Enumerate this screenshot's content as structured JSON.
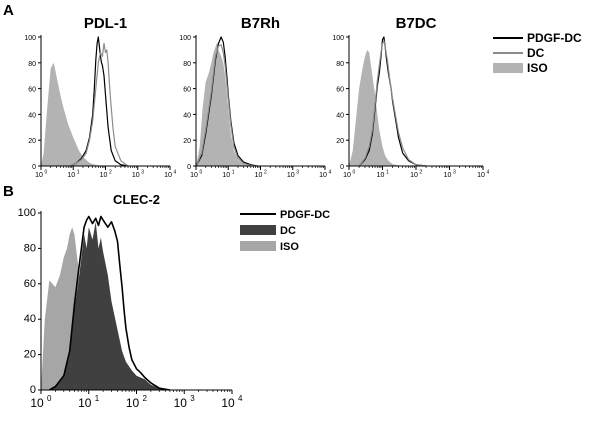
{
  "figure": {
    "panel_a_label": "A",
    "panel_b_label": "B"
  },
  "chart_data": [
    {
      "type": "histogram-overlay",
      "panel": "A",
      "title": "PDL-1",
      "xscale": "log",
      "xlim": [
        1,
        10000
      ],
      "x_tick_base": "10",
      "x_tick_exponents": [
        "0",
        "1",
        "2",
        "3",
        "4"
      ],
      "ylim": [
        0,
        100
      ],
      "y_ticks": [
        0,
        20,
        40,
        60,
        80,
        100
      ],
      "series": [
        {
          "name": "ISO",
          "style": "filled",
          "color": "#b3b3b3",
          "x": [
            1,
            1.2,
            1.5,
            2,
            2.5,
            3,
            4,
            5,
            7,
            10,
            15,
            20,
            30,
            40,
            60,
            100
          ],
          "y": [
            0,
            10,
            40,
            76,
            80,
            70,
            55,
            45,
            32,
            22,
            12,
            7,
            3,
            1.5,
            0.5,
            0
          ]
        },
        {
          "name": "PDGF-DC",
          "style": "line",
          "color": "#000000",
          "x": [
            8,
            12,
            18,
            25,
            32,
            40,
            45,
            50,
            55,
            60,
            65,
            70,
            75,
            80,
            90,
            100,
            120,
            150,
            200,
            300,
            500
          ],
          "y": [
            0,
            2,
            6,
            12,
            22,
            40,
            60,
            82,
            95,
            100,
            92,
            85,
            80,
            78,
            70,
            55,
            30,
            12,
            4,
            1,
            0
          ]
        },
        {
          "name": "DC",
          "style": "line",
          "color": "#8c8c8c",
          "x": [
            8,
            12,
            18,
            25,
            32,
            40,
            50,
            60,
            70,
            80,
            90,
            100,
            110,
            120,
            140,
            170,
            200,
            300,
            500
          ],
          "y": [
            0,
            2,
            5,
            10,
            20,
            35,
            60,
            80,
            88,
            85,
            95,
            88,
            90,
            80,
            55,
            30,
            15,
            4,
            0
          ]
        }
      ]
    },
    {
      "type": "histogram-overlay",
      "panel": "A",
      "title": "B7Rh",
      "xscale": "log",
      "xlim": [
        1,
        10000
      ],
      "x_tick_base": "10",
      "x_tick_exponents": [
        "0",
        "1",
        "2",
        "3",
        "4"
      ],
      "ylim": [
        0,
        100
      ],
      "y_ticks": [
        0,
        20,
        40,
        60,
        80,
        100
      ],
      "series": [
        {
          "name": "ISO",
          "style": "filled",
          "color": "#b3b3b3",
          "x": [
            1,
            1.3,
            1.6,
            2,
            2.5,
            3,
            3.5,
            4,
            4.5,
            5,
            6,
            7,
            8,
            10,
            12,
            15,
            20,
            30,
            50
          ],
          "y": [
            0,
            15,
            45,
            65,
            72,
            80,
            88,
            92,
            96,
            90,
            85,
            80,
            70,
            45,
            25,
            12,
            5,
            1.5,
            0
          ]
        },
        {
          "name": "PDGF-DC",
          "style": "line",
          "color": "#000000",
          "x": [
            1,
            1.5,
            2,
            3,
            4,
            5,
            6,
            7,
            8,
            9,
            10,
            12,
            15,
            20,
            30,
            50,
            80
          ],
          "y": [
            0,
            8,
            25,
            55,
            82,
            95,
            100,
            96,
            85,
            70,
            55,
            35,
            18,
            8,
            3,
            1,
            0
          ]
        },
        {
          "name": "DC",
          "style": "line",
          "color": "#8c8c8c",
          "x": [
            1,
            1.5,
            2,
            3,
            4,
            5,
            6,
            7,
            8,
            10,
            12,
            15,
            20,
            30,
            50,
            80
          ],
          "y": [
            0,
            10,
            28,
            58,
            85,
            93,
            94,
            88,
            78,
            52,
            32,
            15,
            6,
            2,
            0.5,
            0
          ]
        }
      ]
    },
    {
      "type": "histogram-overlay",
      "panel": "A",
      "title": "B7DC",
      "xscale": "log",
      "xlim": [
        1,
        10000
      ],
      "x_tick_base": "10",
      "x_tick_exponents": [
        "0",
        "1",
        "2",
        "3",
        "4"
      ],
      "ylim": [
        0,
        100
      ],
      "y_ticks": [
        0,
        20,
        40,
        60,
        80,
        100
      ],
      "series": [
        {
          "name": "ISO",
          "style": "filled",
          "color": "#b3b3b3",
          "x": [
            1,
            1.3,
            1.6,
            2,
            2.5,
            3,
            3.5,
            4,
            5,
            6,
            7,
            8,
            10,
            12,
            15,
            20,
            30,
            50
          ],
          "y": [
            0,
            12,
            35,
            60,
            75,
            85,
            90,
            88,
            70,
            55,
            40,
            28,
            15,
            8,
            4,
            1.5,
            0.5,
            0
          ]
        },
        {
          "name": "PDGF-DC",
          "style": "line",
          "color": "#000000",
          "x": [
            2,
            3,
            4,
            5,
            6,
            7,
            8,
            9,
            10,
            11,
            12,
            13,
            15,
            18,
            20,
            25,
            30,
            40,
            60,
            100,
            200
          ],
          "y": [
            0,
            5,
            12,
            25,
            45,
            62,
            72,
            85,
            98,
            100,
            92,
            84,
            72,
            60,
            50,
            35,
            22,
            10,
            4,
            1,
            0
          ]
        },
        {
          "name": "DC",
          "style": "line",
          "color": "#8c8c8c",
          "x": [
            2,
            3,
            4,
            5,
            6,
            7,
            8,
            9,
            10,
            11,
            12,
            14,
            16,
            20,
            25,
            30,
            40,
            60,
            100,
            200
          ],
          "y": [
            0,
            6,
            15,
            28,
            48,
            66,
            78,
            88,
            95,
            97,
            92,
            82,
            70,
            52,
            38,
            26,
            14,
            5,
            1,
            0
          ]
        }
      ],
      "legend": [
        "PDGF-DC",
        "DC",
        "ISO"
      ],
      "legend_position": "right"
    },
    {
      "type": "histogram-overlay",
      "panel": "B",
      "title": "CLEC-2",
      "xscale": "log",
      "xlim": [
        1,
        10000
      ],
      "x_tick_base": "10",
      "x_tick_exponents": [
        "0",
        "1",
        "2",
        "3",
        "4"
      ],
      "ylim": [
        0,
        100
      ],
      "y_ticks": [
        0,
        20,
        40,
        60,
        80,
        100
      ],
      "series": [
        {
          "name": "ISO",
          "style": "filled",
          "color": "#a6a6a6",
          "x": [
            1,
            1.2,
            1.5,
            2,
            2.5,
            3,
            3.5,
            4,
            4.5,
            5,
            6,
            7,
            8,
            10,
            12,
            15,
            20,
            25,
            30,
            40
          ],
          "y": [
            0,
            40,
            62,
            58,
            65,
            75,
            80,
            88,
            92,
            88,
            70,
            50,
            35,
            20,
            12,
            6,
            3,
            1.5,
            0.5,
            0
          ]
        },
        {
          "name": "DC",
          "style": "filled",
          "color": "#404040",
          "x": [
            1.5,
            2,
            3,
            4,
            5,
            6,
            7,
            8,
            9,
            10,
            12,
            14,
            16,
            18,
            20,
            25,
            30,
            40,
            50,
            60,
            80,
            100,
            150,
            200,
            300,
            500
          ],
          "y": [
            0,
            2,
            8,
            20,
            45,
            60,
            75,
            88,
            80,
            92,
            85,
            95,
            80,
            86,
            78,
            65,
            50,
            34,
            22,
            16,
            11,
            8,
            6,
            3,
            1,
            0
          ]
        },
        {
          "name": "PDGF-DC",
          "style": "line",
          "color": "#000000",
          "x": [
            1.5,
            2,
            3,
            4,
            5,
            6,
            7,
            8,
            9,
            10,
            12,
            14,
            16,
            18,
            20,
            25,
            30,
            35,
            40,
            45,
            50,
            55,
            60,
            70,
            80,
            100,
            120,
            150,
            200,
            300,
            500
          ],
          "y": [
            0,
            2,
            8,
            22,
            48,
            66,
            80,
            92,
            96,
            98,
            94,
            97,
            93,
            98,
            96,
            92,
            95,
            90,
            84,
            70,
            58,
            45,
            35,
            24,
            17,
            12,
            10,
            7,
            4,
            1,
            0
          ]
        }
      ],
      "legend": [
        "PDGF-DC",
        "DC",
        "ISO"
      ],
      "legend_position": "right"
    }
  ]
}
